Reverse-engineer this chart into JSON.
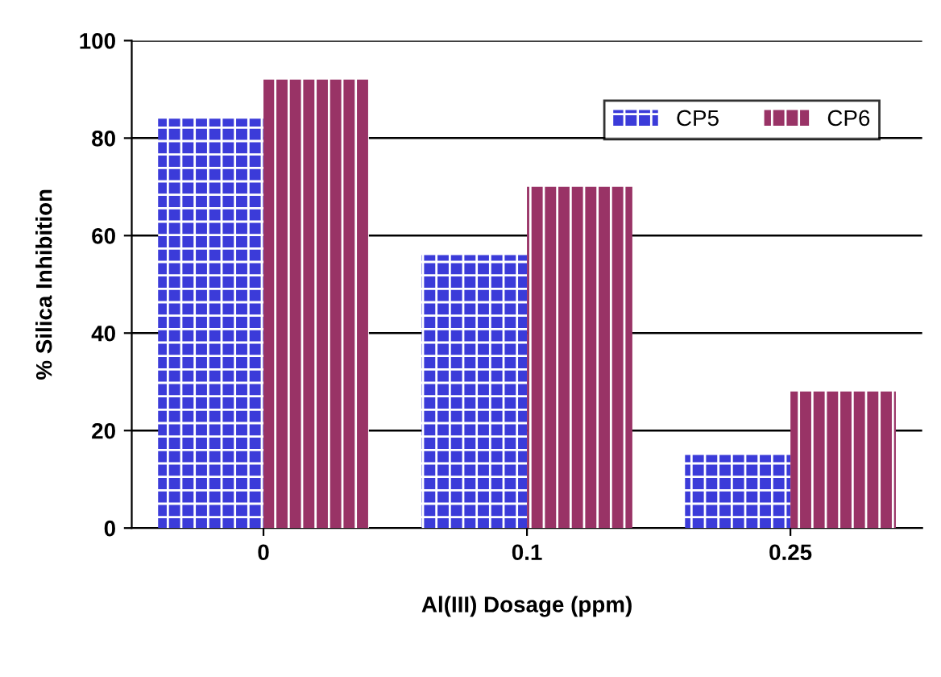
{
  "chart_data": {
    "type": "bar",
    "xlabel": "Al(III) Dosage (ppm)",
    "ylabel": "% Silica Inhibition",
    "categories": [
      "0",
      "0.1",
      "0.25"
    ],
    "series": [
      {
        "name": "CP5",
        "color": "#3b3bd9",
        "values": [
          84,
          56,
          15
        ]
      },
      {
        "name": "CP6",
        "color": "#993366",
        "values": [
          92,
          70,
          28
        ]
      }
    ],
    "ylim": [
      0,
      100
    ],
    "yticks": [
      0,
      20,
      40,
      60,
      80,
      100
    ],
    "grid": "y",
    "legend": "top right"
  }
}
